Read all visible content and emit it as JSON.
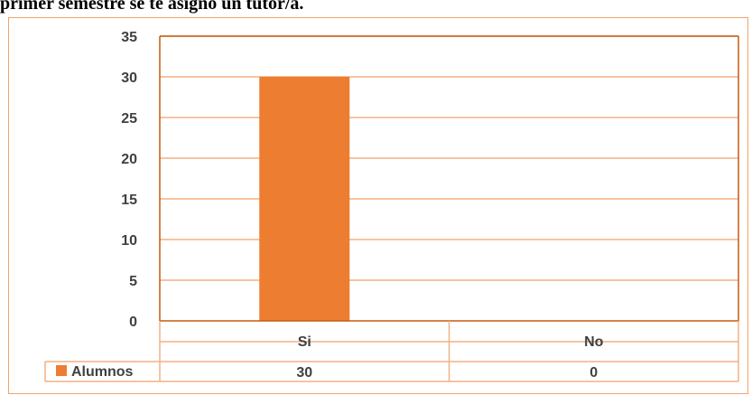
{
  "heading": "primer semestre se te asignó un tutor/a.",
  "chart_data": {
    "type": "bar",
    "categories": [
      "Si",
      "No"
    ],
    "series": [
      {
        "name": "Alumnos",
        "values": [
          30,
          0
        ],
        "color": "#ed7d31"
      }
    ],
    "ylim": [
      0,
      35
    ],
    "yticks": [
      "0",
      "5",
      "10",
      "15",
      "20",
      "25",
      "30",
      "35"
    ],
    "data_table": {
      "legend_label": "Alumnos",
      "values": [
        "30",
        "0"
      ]
    },
    "grid": true,
    "colors": {
      "bar": "#ed7d31",
      "grid": "#f4b183",
      "axis": "#c55a11",
      "frame": "#f2a46a",
      "text": "#404040"
    }
  }
}
